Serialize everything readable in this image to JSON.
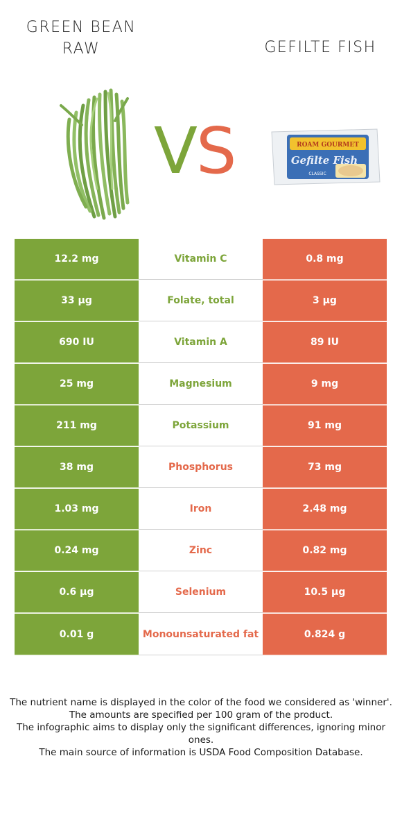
{
  "header": {
    "left_title_line1": "GREEN BEAN",
    "left_title_line2": "RAW",
    "right_title": "GEFILTE FISH",
    "vs_v": "V",
    "vs_s": "S"
  },
  "images": {
    "left": "green-beans-image",
    "right": "gefilte-fish-package-image",
    "package_text_brand": "ROAM GOURMET",
    "package_text_product": "Gefilte Fish",
    "package_text_variant": "CLASSIC"
  },
  "colors": {
    "green": "#7da53a",
    "red": "#e4694b"
  },
  "rows": [
    {
      "left": "12.2 mg",
      "nutrient": "Vitamin C",
      "right": "0.8 mg",
      "winner": "green"
    },
    {
      "left": "33 µg",
      "nutrient": "Folate, total",
      "right": "3 µg",
      "winner": "green"
    },
    {
      "left": "690 IU",
      "nutrient": "Vitamin A",
      "right": "89 IU",
      "winner": "green"
    },
    {
      "left": "25 mg",
      "nutrient": "Magnesium",
      "right": "9 mg",
      "winner": "green"
    },
    {
      "left": "211 mg",
      "nutrient": "Potassium",
      "right": "91 mg",
      "winner": "green"
    },
    {
      "left": "38 mg",
      "nutrient": "Phosphorus",
      "right": "73 mg",
      "winner": "red"
    },
    {
      "left": "1.03 mg",
      "nutrient": "Iron",
      "right": "2.48 mg",
      "winner": "red"
    },
    {
      "left": "0.24 mg",
      "nutrient": "Zinc",
      "right": "0.82 mg",
      "winner": "red"
    },
    {
      "left": "0.6 µg",
      "nutrient": "Selenium",
      "right": "10.5 µg",
      "winner": "red"
    },
    {
      "left": "0.01 g",
      "nutrient": "Monounsaturated fat",
      "right": "0.824 g",
      "winner": "red"
    }
  ],
  "footer": {
    "line1": "The nutrient name is displayed in the color of the food we considered as 'winner'.",
    "line2": "The amounts are specified per 100 gram of the product.",
    "line3": "The infographic aims to display only the significant differences, ignoring minor ones.",
    "line4": "The main source of information is USDA Food Composition Database."
  }
}
